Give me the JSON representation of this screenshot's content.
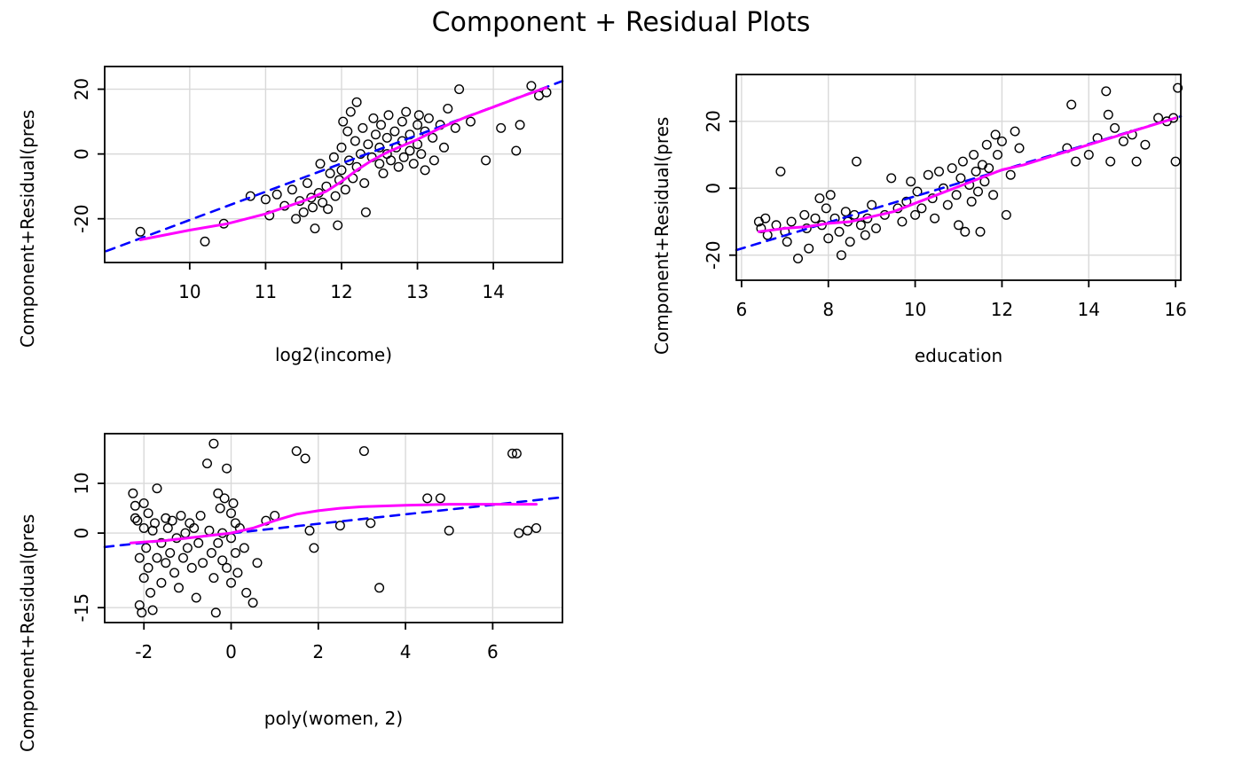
{
  "title": "Component + Residual Plots",
  "chart_data": [
    {
      "type": "scatter",
      "id": "log2-income",
      "xlabel": "log2(income)",
      "ylabel": "Component+Residual(pres",
      "xlim": [
        8.88,
        14.91
      ],
      "ylim": [
        -33.5,
        27
      ],
      "xticks": [
        10,
        11,
        12,
        13,
        14
      ],
      "yticks": [
        -20,
        0,
        20
      ],
      "grid": true,
      "points": [
        [
          9.35,
          -24
        ],
        [
          10.2,
          -27
        ],
        [
          10.45,
          -21.5
        ],
        [
          10.8,
          -13
        ],
        [
          11.0,
          -14
        ],
        [
          11.05,
          -19
        ],
        [
          11.15,
          -12.5
        ],
        [
          11.25,
          -16
        ],
        [
          11.35,
          -11
        ],
        [
          11.4,
          -20
        ],
        [
          11.45,
          -14.5
        ],
        [
          11.5,
          -18
        ],
        [
          11.55,
          -9
        ],
        [
          11.6,
          -13.5
        ],
        [
          11.62,
          -16.5
        ],
        [
          11.65,
          -23
        ],
        [
          11.7,
          -12
        ],
        [
          11.72,
          -3
        ],
        [
          11.75,
          -15
        ],
        [
          11.8,
          -10
        ],
        [
          11.82,
          -17
        ],
        [
          11.85,
          -6
        ],
        [
          11.9,
          -1
        ],
        [
          11.92,
          -13
        ],
        [
          11.95,
          -22
        ],
        [
          11.97,
          -8
        ],
        [
          12.0,
          2
        ],
        [
          12.0,
          -5
        ],
        [
          12.02,
          10
        ],
        [
          12.05,
          -11
        ],
        [
          12.08,
          7
        ],
        [
          12.1,
          -2
        ],
        [
          12.12,
          13
        ],
        [
          12.15,
          -7.5
        ],
        [
          12.18,
          4
        ],
        [
          12.2,
          -4
        ],
        [
          12.2,
          16
        ],
        [
          12.25,
          0
        ],
        [
          12.28,
          8
        ],
        [
          12.3,
          -9
        ],
        [
          12.32,
          -18
        ],
        [
          12.35,
          3
        ],
        [
          12.4,
          -1
        ],
        [
          12.42,
          11
        ],
        [
          12.45,
          6
        ],
        [
          12.5,
          -3
        ],
        [
          12.5,
          2
        ],
        [
          12.52,
          9
        ],
        [
          12.55,
          -6
        ],
        [
          12.6,
          5
        ],
        [
          12.6,
          0
        ],
        [
          12.62,
          12
        ],
        [
          12.65,
          -2
        ],
        [
          12.7,
          7
        ],
        [
          12.72,
          2
        ],
        [
          12.75,
          -4
        ],
        [
          12.8,
          10
        ],
        [
          12.8,
          4
        ],
        [
          12.82,
          -1
        ],
        [
          12.85,
          13
        ],
        [
          12.9,
          6
        ],
        [
          12.9,
          1
        ],
        [
          12.95,
          -3
        ],
        [
          13.0,
          9
        ],
        [
          13.0,
          3
        ],
        [
          13.02,
          12
        ],
        [
          13.05,
          0
        ],
        [
          13.1,
          7
        ],
        [
          13.1,
          -5
        ],
        [
          13.15,
          11
        ],
        [
          13.2,
          5
        ],
        [
          13.22,
          -2
        ],
        [
          13.3,
          9
        ],
        [
          13.35,
          2
        ],
        [
          13.4,
          14
        ],
        [
          13.5,
          8
        ],
        [
          13.55,
          20
        ],
        [
          13.7,
          10
        ],
        [
          13.9,
          -2
        ],
        [
          14.1,
          8
        ],
        [
          14.3,
          1
        ],
        [
          14.35,
          9
        ],
        [
          14.5,
          21
        ],
        [
          14.6,
          18
        ],
        [
          14.7,
          19
        ]
      ],
      "lines": [
        {
          "name": "linear-fit",
          "style": "dashed",
          "color": "#0000FF",
          "width": 2.6,
          "points": [
            [
              8.9,
              -30
            ],
            [
              14.91,
              22.5
            ]
          ]
        },
        {
          "name": "loess-smooth",
          "style": "solid",
          "color": "#FF00FF",
          "width": 3,
          "points": [
            [
              9.35,
              -26.5
            ],
            [
              10.0,
              -23.5
            ],
            [
              10.5,
              -21.5
            ],
            [
              11.0,
              -18.5
            ],
            [
              11.5,
              -14.5
            ],
            [
              11.8,
              -11.5
            ],
            [
              12.0,
              -8.5
            ],
            [
              12.2,
              -5
            ],
            [
              12.4,
              -2
            ],
            [
              12.6,
              0.5
            ],
            [
              12.8,
              2.5
            ],
            [
              13.0,
              4.5
            ],
            [
              13.3,
              8
            ],
            [
              13.6,
              11
            ],
            [
              14.0,
              14.5
            ],
            [
              14.4,
              18
            ],
            [
              14.7,
              20.5
            ]
          ]
        }
      ]
    },
    {
      "type": "scatter",
      "id": "education",
      "xlabel": "education",
      "ylabel": "Component+Residual(pres",
      "xlim": [
        5.88,
        16.12
      ],
      "ylim": [
        -27.5,
        34
      ],
      "xticks": [
        6,
        8,
        10,
        12,
        14,
        16
      ],
      "yticks": [
        -20,
        0,
        20
      ],
      "grid": true,
      "points": [
        [
          6.4,
          -10
        ],
        [
          6.45,
          -12
        ],
        [
          6.55,
          -9
        ],
        [
          6.6,
          -14
        ],
        [
          6.8,
          -11
        ],
        [
          6.9,
          5
        ],
        [
          7.0,
          -13
        ],
        [
          7.05,
          -16
        ],
        [
          7.15,
          -10
        ],
        [
          7.3,
          -21
        ],
        [
          7.45,
          -8
        ],
        [
          7.5,
          -12
        ],
        [
          7.55,
          -18
        ],
        [
          7.7,
          -9
        ],
        [
          7.8,
          -3
        ],
        [
          7.85,
          -11
        ],
        [
          7.95,
          -6
        ],
        [
          8.0,
          -15
        ],
        [
          8.05,
          -2
        ],
        [
          8.15,
          -9
        ],
        [
          8.25,
          -13
        ],
        [
          8.3,
          -20
        ],
        [
          8.4,
          -7
        ],
        [
          8.45,
          -10
        ],
        [
          8.5,
          -16
        ],
        [
          8.6,
          -8
        ],
        [
          8.65,
          8
        ],
        [
          8.75,
          -11
        ],
        [
          8.85,
          -14
        ],
        [
          8.9,
          -9
        ],
        [
          9.0,
          -5
        ],
        [
          9.1,
          -12
        ],
        [
          9.3,
          -8
        ],
        [
          9.45,
          3
        ],
        [
          9.6,
          -6
        ],
        [
          9.7,
          -10
        ],
        [
          9.8,
          -4
        ],
        [
          9.9,
          2
        ],
        [
          10.0,
          -8
        ],
        [
          10.05,
          -1
        ],
        [
          10.15,
          -6
        ],
        [
          10.3,
          4
        ],
        [
          10.4,
          -3
        ],
        [
          10.45,
          -9
        ],
        [
          10.55,
          5
        ],
        [
          10.65,
          0
        ],
        [
          10.75,
          -5
        ],
        [
          10.85,
          6
        ],
        [
          10.95,
          -2
        ],
        [
          11.0,
          -11
        ],
        [
          11.05,
          3
        ],
        [
          11.1,
          8
        ],
        [
          11.15,
          -13
        ],
        [
          11.25,
          1
        ],
        [
          11.3,
          -4
        ],
        [
          11.35,
          10
        ],
        [
          11.4,
          5
        ],
        [
          11.45,
          -1
        ],
        [
          11.5,
          -13
        ],
        [
          11.55,
          7
        ],
        [
          11.6,
          2
        ],
        [
          11.65,
          13
        ],
        [
          11.7,
          6
        ],
        [
          11.8,
          -2
        ],
        [
          11.85,
          16
        ],
        [
          11.9,
          10
        ],
        [
          12.0,
          14
        ],
        [
          12.1,
          -8
        ],
        [
          12.2,
          4
        ],
        [
          12.3,
          17
        ],
        [
          12.4,
          12
        ],
        [
          13.5,
          12
        ],
        [
          13.6,
          25
        ],
        [
          13.7,
          8
        ],
        [
          14.0,
          10
        ],
        [
          14.2,
          15
        ],
        [
          14.4,
          29
        ],
        [
          14.45,
          22
        ],
        [
          14.5,
          8
        ],
        [
          14.6,
          18
        ],
        [
          14.8,
          14
        ],
        [
          15.0,
          16
        ],
        [
          15.1,
          8
        ],
        [
          15.3,
          13
        ],
        [
          15.6,
          21
        ],
        [
          15.8,
          20
        ],
        [
          15.95,
          21
        ],
        [
          16.0,
          8
        ],
        [
          16.05,
          30
        ]
      ],
      "lines": [
        {
          "name": "linear-fit",
          "style": "dashed",
          "color": "#0000FF",
          "width": 2.6,
          "points": [
            [
              5.88,
              -18.5
            ],
            [
              16.12,
              21.5
            ]
          ]
        },
        {
          "name": "loess-smooth",
          "style": "solid",
          "color": "#FF00FF",
          "width": 3,
          "points": [
            [
              6.4,
              -13
            ],
            [
              7.0,
              -12
            ],
            [
              7.5,
              -11.5
            ],
            [
              8.0,
              -10.5
            ],
            [
              8.5,
              -10
            ],
            [
              9.0,
              -8.5
            ],
            [
              9.5,
              -7
            ],
            [
              10.0,
              -4.5
            ],
            [
              10.5,
              -2
            ],
            [
              11.0,
              0.5
            ],
            [
              11.5,
              3
            ],
            [
              12.0,
              5.5
            ],
            [
              12.5,
              7
            ],
            [
              13.0,
              9
            ],
            [
              13.5,
              11
            ],
            [
              14.0,
              13
            ],
            [
              14.5,
              15
            ],
            [
              15.0,
              17
            ],
            [
              15.5,
              19
            ],
            [
              16.0,
              21
            ]
          ]
        }
      ]
    },
    {
      "type": "scatter",
      "id": "poly-women-2",
      "xlabel": "poly(women, 2)",
      "ylabel": "Component+Residual(pres",
      "xlim": [
        -2.9,
        7.6
      ],
      "ylim": [
        -18,
        20
      ],
      "xticks": [
        -2,
        0,
        2,
        4,
        6
      ],
      "yticks": [
        -15,
        0,
        10
      ],
      "grid": true,
      "points": [
        [
          -2.25,
          8
        ],
        [
          -2.2,
          3
        ],
        [
          -2.2,
          5.5
        ],
        [
          -2.15,
          2.5
        ],
        [
          -2.1,
          -5
        ],
        [
          -2.1,
          -14.5
        ],
        [
          -2.05,
          -16
        ],
        [
          -2.0,
          6
        ],
        [
          -2.0,
          1
        ],
        [
          -2.0,
          -9
        ],
        [
          -1.95,
          -3
        ],
        [
          -1.9,
          4
        ],
        [
          -1.9,
          -7
        ],
        [
          -1.85,
          -12
        ],
        [
          -1.8,
          0.5
        ],
        [
          -1.8,
          -15.5
        ],
        [
          -1.75,
          2
        ],
        [
          -1.7,
          -5
        ],
        [
          -1.7,
          9
        ],
        [
          -1.6,
          -2
        ],
        [
          -1.6,
          -10
        ],
        [
          -1.5,
          3
        ],
        [
          -1.5,
          -6
        ],
        [
          -1.45,
          1
        ],
        [
          -1.4,
          -4
        ],
        [
          -1.35,
          2.5
        ],
        [
          -1.3,
          -8
        ],
        [
          -1.25,
          -1
        ],
        [
          -1.2,
          -11
        ],
        [
          -1.15,
          3.5
        ],
        [
          -1.1,
          -5
        ],
        [
          -1.05,
          0
        ],
        [
          -1.0,
          -3
        ],
        [
          -0.95,
          2
        ],
        [
          -0.9,
          -7
        ],
        [
          -0.85,
          1
        ],
        [
          -0.8,
          -13
        ],
        [
          -0.75,
          -2
        ],
        [
          -0.7,
          3.5
        ],
        [
          -0.65,
          -6
        ],
        [
          -0.55,
          14
        ],
        [
          -0.5,
          0.5
        ],
        [
          -0.45,
          -4
        ],
        [
          -0.4,
          -9
        ],
        [
          -0.4,
          18
        ],
        [
          -0.35,
          -16
        ],
        [
          -0.3,
          8
        ],
        [
          -0.3,
          -2
        ],
        [
          -0.25,
          5
        ],
        [
          -0.2,
          0
        ],
        [
          -0.2,
          -5.5
        ],
        [
          -0.15,
          7
        ],
        [
          -0.1,
          -7
        ],
        [
          -0.1,
          13
        ],
        [
          0.0,
          4
        ],
        [
          0.0,
          -1
        ],
        [
          0.0,
          -10
        ],
        [
          0.05,
          6
        ],
        [
          0.1,
          2
        ],
        [
          0.1,
          -4
        ],
        [
          0.15,
          -8
        ],
        [
          0.2,
          1
        ],
        [
          0.3,
          -3
        ],
        [
          0.35,
          -12
        ],
        [
          0.5,
          -14
        ],
        [
          0.6,
          -6
        ],
        [
          0.8,
          2.5
        ],
        [
          1.0,
          3.5
        ],
        [
          1.5,
          16.5
        ],
        [
          1.7,
          15
        ],
        [
          1.8,
          0.5
        ],
        [
          1.9,
          -3
        ],
        [
          2.5,
          1.5
        ],
        [
          3.05,
          16.5
        ],
        [
          3.2,
          2
        ],
        [
          3.4,
          -11
        ],
        [
          4.5,
          7
        ],
        [
          4.8,
          7
        ],
        [
          5.0,
          0.5
        ],
        [
          6.45,
          16
        ],
        [
          6.55,
          16
        ],
        [
          6.6,
          0
        ],
        [
          6.8,
          0.5
        ],
        [
          7.0,
          1
        ]
      ],
      "lines": [
        {
          "name": "linear-fit",
          "style": "dashed",
          "color": "#0000FF",
          "width": 2.6,
          "points": [
            [
              -2.9,
              -2.8
            ],
            [
              7.6,
              7.2
            ]
          ]
        },
        {
          "name": "loess-smooth",
          "style": "solid",
          "color": "#FF00FF",
          "width": 3,
          "points": [
            [
              -2.3,
              -2
            ],
            [
              -1.5,
              -1.5
            ],
            [
              -1.0,
              -1
            ],
            [
              -0.5,
              -0.5
            ],
            [
              0.0,
              0
            ],
            [
              0.5,
              1
            ],
            [
              1.0,
              2.5
            ],
            [
              1.5,
              3.8
            ],
            [
              2.0,
              4.5
            ],
            [
              2.5,
              5
            ],
            [
              3.0,
              5.3
            ],
            [
              4.0,
              5.6
            ],
            [
              5.0,
              5.8
            ],
            [
              6.0,
              5.8
            ],
            [
              7.0,
              5.8
            ]
          ]
        }
      ]
    }
  ]
}
